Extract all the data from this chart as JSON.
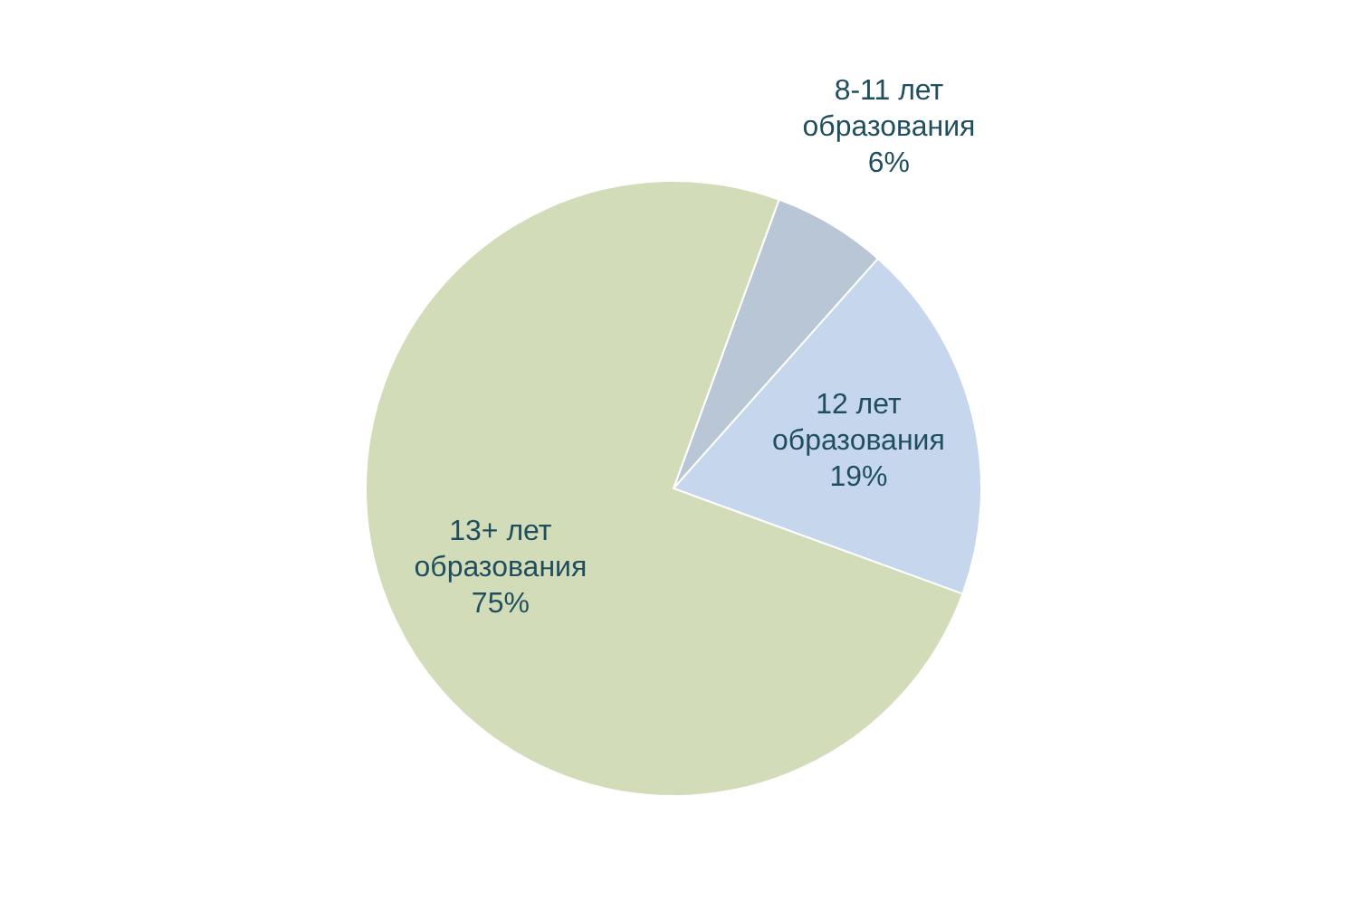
{
  "chart_data": {
    "type": "pie",
    "categories": [
      "8-11 лет образования",
      "12 лет образования",
      "13+ лет образования"
    ],
    "values": [
      6,
      19,
      75
    ],
    "value_labels": [
      "6%",
      "19%",
      "75%"
    ],
    "colors": [
      "#b9c6d6",
      "#c6d6ec",
      "#d3dcb8"
    ]
  }
}
